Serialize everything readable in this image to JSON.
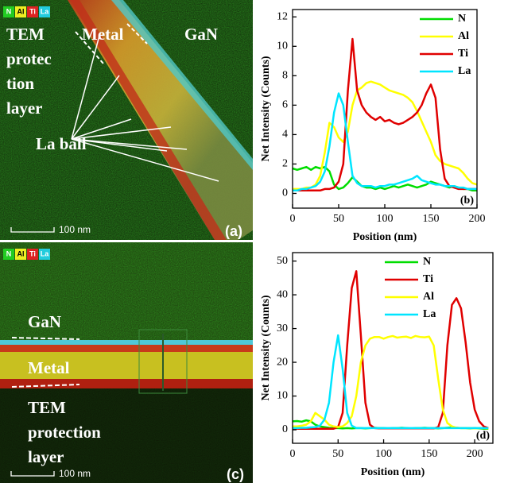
{
  "panels": [
    {
      "tags": [
        "N",
        "Al",
        "Ti",
        "La"
      ],
      "metal": "Metal",
      "gan": "GaN",
      "layer": [
        "TEM",
        "protec",
        "tion",
        "layer"
      ],
      "ball": "La ball",
      "scale": "100 nm",
      "label": "(a)"
    },
    {
      "tags": [
        "N",
        "Al",
        "Ti",
        "La"
      ],
      "gan": "GaN",
      "metal": "Metal",
      "layer": [
        "TEM",
        "protection",
        "layer"
      ],
      "scale": "100 nm",
      "label": "(c)"
    }
  ],
  "chart_data": [
    {
      "type": "line",
      "xlabel": "Position (nm)",
      "ylabel": "Net Intensity (Counts)",
      "panel_label": "(b)",
      "legend": "upper right",
      "xlim": [
        0,
        200
      ],
      "ylim": [
        -1,
        12.5
      ],
      "xticks": [
        0,
        50,
        100,
        150,
        200
      ],
      "yticks": [
        0,
        2,
        4,
        6,
        8,
        10,
        12
      ],
      "x": [
        0,
        5,
        10,
        15,
        20,
        25,
        30,
        35,
        40,
        45,
        50,
        55,
        60,
        65,
        70,
        75,
        80,
        85,
        90,
        95,
        100,
        105,
        110,
        115,
        120,
        125,
        130,
        135,
        140,
        145,
        150,
        155,
        160,
        165,
        170,
        175,
        180,
        185,
        190,
        195,
        200
      ],
      "series": [
        {
          "name": "N",
          "color": "#00dd00",
          "values": [
            1.7,
            1.6,
            1.7,
            1.8,
            1.6,
            1.8,
            1.7,
            1.8,
            1.5,
            0.6,
            0.3,
            0.4,
            0.7,
            1.1,
            0.8,
            0.5,
            0.4,
            0.4,
            0.3,
            0.4,
            0.3,
            0.4,
            0.5,
            0.4,
            0.5,
            0.6,
            0.5,
            0.4,
            0.5,
            0.6,
            0.8,
            0.7,
            0.6,
            0.5,
            0.4,
            0.5,
            0.4,
            0.3,
            0.3,
            0.2,
            0.2
          ]
        },
        {
          "name": "Al",
          "color": "#ffff00",
          "values": [
            0.3,
            0.3,
            0.3,
            0.4,
            0.4,
            0.6,
            1.2,
            2.8,
            4.8,
            4.5,
            3.8,
            3.5,
            4.2,
            6,
            7,
            7.2,
            7.5,
            7.6,
            7.5,
            7.4,
            7.2,
            7,
            6.9,
            6.8,
            6.7,
            6.5,
            6.2,
            5.6,
            4.9,
            4.2,
            3.5,
            2.6,
            2.2,
            2,
            1.9,
            1.8,
            1.7,
            1.4,
            1,
            0.7,
            0.6
          ]
        },
        {
          "name": "Ti",
          "color": "#e00000",
          "values": [
            0.2,
            0.2,
            0.2,
            0.2,
            0.2,
            0.2,
            0.2,
            0.3,
            0.3,
            0.4,
            0.8,
            2,
            7,
            10.5,
            7,
            6,
            5.5,
            5.2,
            5,
            5.2,
            4.9,
            5,
            4.8,
            4.7,
            4.8,
            5,
            5.2,
            5.5,
            6,
            6.8,
            7.4,
            6.5,
            3,
            1,
            0.5,
            0.4,
            0.3,
            0.3,
            0.3,
            0.3,
            0.3
          ]
        },
        {
          "name": "La",
          "color": "#00e5ff",
          "values": [
            0.2,
            0.2,
            0.3,
            0.3,
            0.4,
            0.5,
            0.8,
            1.5,
            3.2,
            5.5,
            6.8,
            6,
            3.5,
            1.2,
            0.7,
            0.5,
            0.5,
            0.5,
            0.4,
            0.5,
            0.5,
            0.6,
            0.6,
            0.7,
            0.8,
            0.9,
            1,
            1.2,
            0.9,
            0.8,
            0.7,
            0.6,
            0.6,
            0.5,
            0.5,
            0.5,
            0.4,
            0.4,
            0.3,
            0.3,
            0.3
          ]
        }
      ]
    },
    {
      "type": "line",
      "xlabel": "Position (nm)",
      "ylabel": "Net Intensity (Counts)",
      "panel_label": "(d)",
      "legend": "upper center",
      "xlim": [
        0,
        220
      ],
      "ylim": [
        -4,
        52.5
      ],
      "xticks": [
        0,
        50,
        100,
        150,
        200
      ],
      "yticks": [
        0,
        10,
        20,
        30,
        40,
        50
      ],
      "x": [
        0,
        5,
        10,
        15,
        20,
        25,
        30,
        35,
        40,
        45,
        50,
        55,
        60,
        65,
        70,
        75,
        80,
        85,
        90,
        95,
        100,
        105,
        110,
        115,
        120,
        125,
        130,
        135,
        140,
        145,
        150,
        155,
        160,
        165,
        170,
        175,
        180,
        185,
        190,
        195,
        200,
        205,
        210,
        215
      ],
      "series": [
        {
          "name": "N",
          "color": "#00dd00",
          "values": [
            2.5,
            2.6,
            2.4,
            2.8,
            2.5,
            1.5,
            1,
            0.8,
            0.6,
            0.5,
            0.5,
            0.4,
            0.5,
            0.4,
            0.5,
            0.5,
            0.4,
            0.5,
            0.6,
            0.5,
            0.5,
            0.4,
            0.5,
            0.5,
            0.6,
            0.5,
            0.4,
            0.5,
            0.5,
            0.6,
            0.5,
            0.5,
            0.4,
            0.5,
            0.6,
            0.7,
            0.6,
            0.5,
            0.5,
            0.4,
            0.5,
            0.4,
            0.3,
            0.3
          ]
        },
        {
          "name": "Ti",
          "color": "#e00000",
          "values": [
            0.3,
            0.3,
            0.3,
            0.3,
            0.3,
            0.3,
            0.3,
            0.3,
            0.3,
            0.3,
            0.8,
            5,
            25,
            42,
            47,
            28,
            8,
            1.5,
            0.5,
            0.4,
            0.4,
            0.4,
            0.4,
            0.4,
            0.4,
            0.4,
            0.4,
            0.4,
            0.4,
            0.4,
            0.4,
            0.4,
            0.8,
            5,
            25,
            37,
            39,
            36,
            26,
            14,
            6,
            2.5,
            1,
            0.5
          ]
        },
        {
          "name": "Al",
          "color": "#ffff00",
          "values": [
            1,
            1,
            1.2,
            1.5,
            2.5,
            5,
            4,
            3,
            1.5,
            1,
            0.8,
            1,
            2,
            4,
            10,
            20,
            25,
            27,
            27.5,
            27.5,
            27,
            27.5,
            27.8,
            27.3,
            27.5,
            27.6,
            27.2,
            27.8,
            27.5,
            27.4,
            27.6,
            25,
            15,
            6,
            2,
            1,
            0.6,
            0.5,
            0.5,
            0.5,
            0.4,
            0.5,
            0.5,
            0.4
          ]
        },
        {
          "name": "La",
          "color": "#00e5ff",
          "values": [
            0.5,
            0.5,
            0.6,
            0.6,
            0.7,
            0.8,
            1.2,
            3,
            8,
            20,
            28,
            18,
            5,
            1.2,
            0.5,
            0.5,
            0.5,
            0.5,
            0.5,
            0.5,
            0.5,
            0.5,
            0.5,
            0.5,
            0.5,
            0.5,
            0.5,
            0.5,
            0.5,
            0.5,
            0.5,
            0.5,
            0.5,
            0.5,
            0.5,
            0.5,
            0.5,
            0.5,
            0.5,
            0.5,
            0.5,
            0.5,
            0.5,
            0.5
          ]
        }
      ]
    }
  ]
}
